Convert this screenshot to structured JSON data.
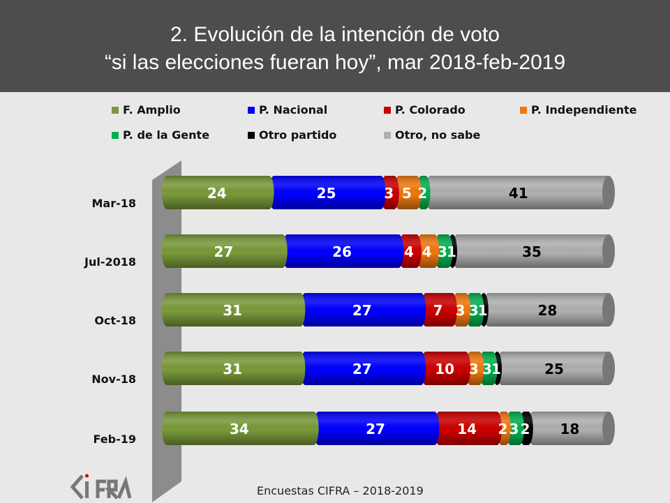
{
  "header": {
    "title_line1": "2. Evolución de la intención de voto",
    "title_line2": "“si las elecciones fueran hoy”, mar 2018-feb-2019"
  },
  "footer": {
    "text": "Encuestas CIFRA – 2018-2019",
    "logo_text": "CIFRA"
  },
  "chart_data": {
    "type": "bar",
    "orientation": "horizontal",
    "stacked": true,
    "title": "2. Evolución de la intención de voto “si las elecciones fueran hoy”, mar 2018-feb-2019",
    "categories": [
      "Mar-18",
      "Jul-2018",
      "Oct-18",
      "Nov-18",
      "Feb-19"
    ],
    "legend_position": "top",
    "series": [
      {
        "name": "F. Amplio",
        "color": "#7a9a3a",
        "label_color": "#ffffff",
        "values": [
          24,
          27,
          31,
          31,
          34
        ]
      },
      {
        "name": "P. Nacional",
        "color": "#0000ff",
        "label_color": "#ffffff",
        "values": [
          25,
          26,
          27,
          27,
          27
        ]
      },
      {
        "name": "P. Colorado",
        "color": "#cc0000",
        "label_color": "#ffffff",
        "values": [
          3,
          4,
          7,
          10,
          14
        ]
      },
      {
        "name": "P. Independiente",
        "color": "#f07810",
        "label_color": "#ffffff",
        "values": [
          5,
          4,
          3,
          3,
          2
        ]
      },
      {
        "name": "P. de la Gente",
        "color": "#00b050",
        "label_color": "#ffffff",
        "values": [
          2,
          3,
          3,
          3,
          3
        ]
      },
      {
        "name": "Otro partido",
        "color": "#000000",
        "label_color": "#ffffff",
        "values": [
          0,
          1,
          1,
          1,
          2
        ]
      },
      {
        "name": "Otro, no sabe",
        "color": "#b0b0b0",
        "label_color": "#000000",
        "values": [
          41,
          35,
          28,
          25,
          18
        ]
      }
    ],
    "xlim": [
      0,
      100
    ]
  }
}
